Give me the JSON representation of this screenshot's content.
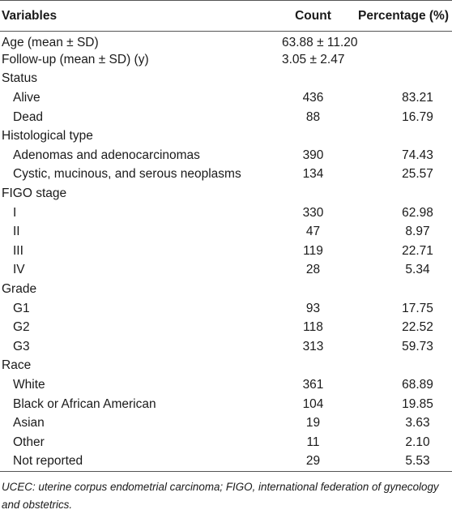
{
  "table": {
    "headers": {
      "variables": "Variables",
      "count": "Count",
      "percentage": "Percentage (%)"
    },
    "rows": [
      {
        "label": "Age (mean ± SD)",
        "count": "63.88 ± 11.20",
        "pct": "",
        "sub": false
      },
      {
        "label": "Follow-up (mean ± SD) (y)",
        "count": "3.05 ± 2.47",
        "pct": "",
        "sub": false
      },
      {
        "label": "Status",
        "count": "",
        "pct": "",
        "sub": false
      },
      {
        "label": "Alive",
        "count": "436",
        "pct": "83.21",
        "sub": true
      },
      {
        "label": "Dead",
        "count": "88",
        "pct": "16.79",
        "sub": true
      },
      {
        "label": "Histological type",
        "count": "",
        "pct": "",
        "sub": false
      },
      {
        "label": "Adenomas and adenocarcinomas",
        "count": "390",
        "pct": "74.43",
        "sub": true
      },
      {
        "label": "Cystic, mucinous, and serous neoplasms",
        "count": "134",
        "pct": "25.57",
        "sub": true
      },
      {
        "label": "FIGO stage",
        "count": "",
        "pct": "",
        "sub": false
      },
      {
        "label": "I",
        "count": "330",
        "pct": "62.98",
        "sub": true
      },
      {
        "label": "II",
        "count": "47",
        "pct": "8.97",
        "sub": true
      },
      {
        "label": "III",
        "count": "119",
        "pct": "22.71",
        "sub": true
      },
      {
        "label": "IV",
        "count": "28",
        "pct": "5.34",
        "sub": true
      },
      {
        "label": "Grade",
        "count": "",
        "pct": "",
        "sub": false
      },
      {
        "label": "G1",
        "count": "93",
        "pct": "17.75",
        "sub": true
      },
      {
        "label": "G2",
        "count": "118",
        "pct": "22.52",
        "sub": true
      },
      {
        "label": "G3",
        "count": "313",
        "pct": "59.73",
        "sub": true
      },
      {
        "label": "Race",
        "count": "",
        "pct": "",
        "sub": false
      },
      {
        "label": "White",
        "count": "361",
        "pct": "68.89",
        "sub": true
      },
      {
        "label": "Black or African American",
        "count": "104",
        "pct": "19.85",
        "sub": true
      },
      {
        "label": "Asian",
        "count": "19",
        "pct": "3.63",
        "sub": true
      },
      {
        "label": "Other",
        "count": "11",
        "pct": "2.10",
        "sub": true
      },
      {
        "label": "Not reported",
        "count": "29",
        "pct": "5.53",
        "sub": true
      }
    ]
  },
  "footnote": "UCEC: uterine corpus endometrial carcinoma; FIGO, international federation of gynecology and obstetrics."
}
